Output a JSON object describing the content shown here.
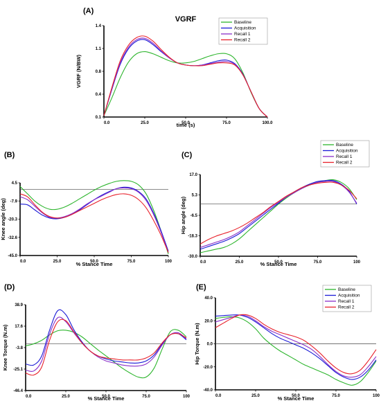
{
  "legend_labels": [
    "Baseline",
    "Acquisition",
    "Recall 1",
    "Recall 2"
  ],
  "series_colors": {
    "Baseline": "#2db52d",
    "Acquisition": "#1a1ad6",
    "Recall 1": "#8a2ec8",
    "Recall 2": "#e8202a"
  },
  "chart_data": [
    {
      "id": "vgrf",
      "panel_label": "(A)",
      "type": "line",
      "title": "VGRF",
      "xlabel": "time (s)",
      "ylabel": "VGRF (N/BW)",
      "xlim": [
        0,
        100
      ],
      "ylim": [
        0.1,
        1.4
      ],
      "xticks": [
        "0.0",
        "25.0",
        "50.0",
        "75.0",
        "100.0"
      ],
      "yticks": [
        "0.1",
        "0.4",
        "0.8",
        "1.1",
        "1.4"
      ],
      "x": [
        0,
        5,
        10,
        15,
        20,
        25,
        30,
        35,
        40,
        45,
        50,
        55,
        60,
        65,
        70,
        75,
        80,
        85,
        90,
        95,
        100
      ],
      "zero_line": null,
      "series": [
        {
          "name": "Baseline",
          "values": [
            0.12,
            0.38,
            0.66,
            0.88,
            1.0,
            1.03,
            1.0,
            0.95,
            0.9,
            0.87,
            0.87,
            0.89,
            0.93,
            0.97,
            1.0,
            1.0,
            0.93,
            0.73,
            0.45,
            0.22,
            0.1
          ]
        },
        {
          "name": "Acquisition",
          "values": [
            0.12,
            0.5,
            0.85,
            1.07,
            1.18,
            1.2,
            1.13,
            1.03,
            0.94,
            0.87,
            0.84,
            0.83,
            0.84,
            0.87,
            0.9,
            0.91,
            0.86,
            0.71,
            0.46,
            0.22,
            0.1
          ]
        },
        {
          "name": "Recall 1",
          "values": [
            0.12,
            0.51,
            0.87,
            1.09,
            1.2,
            1.22,
            1.15,
            1.04,
            0.94,
            0.87,
            0.84,
            0.83,
            0.84,
            0.86,
            0.88,
            0.89,
            0.85,
            0.7,
            0.46,
            0.22,
            0.1
          ]
        },
        {
          "name": "Recall 2",
          "values": [
            0.12,
            0.53,
            0.9,
            1.12,
            1.23,
            1.25,
            1.18,
            1.06,
            0.95,
            0.87,
            0.84,
            0.83,
            0.83,
            0.85,
            0.87,
            0.87,
            0.84,
            0.7,
            0.46,
            0.22,
            0.1
          ]
        }
      ]
    },
    {
      "id": "knee-angle",
      "panel_label": "(B)",
      "type": "line",
      "title": "",
      "xlabel": "% Stance Time",
      "ylabel": "Knee angle (deg)",
      "xlim": [
        0,
        100
      ],
      "ylim": [
        -45,
        4.5
      ],
      "xticks": [
        "0.0",
        "25.0",
        "50.0",
        "75.0",
        "100"
      ],
      "yticks": [
        "-45.0",
        "-32.6",
        "-20.3",
        "-7.9",
        "4.5"
      ],
      "x": [
        0,
        5,
        10,
        15,
        20,
        25,
        30,
        35,
        40,
        45,
        50,
        55,
        60,
        65,
        70,
        75,
        80,
        85,
        90,
        95,
        100
      ],
      "zero_line": 0,
      "series": [
        {
          "name": "Baseline",
          "values": [
            2.0,
            -3.0,
            -8.0,
            -11.5,
            -13.5,
            -13.5,
            -12.0,
            -9.5,
            -6.5,
            -3.5,
            -0.5,
            2.0,
            4.0,
            5.5,
            6.0,
            5.5,
            3.0,
            -3.0,
            -14.0,
            -28.0,
            -44.0
          ]
        },
        {
          "name": "Acquisition",
          "values": [
            -10.0,
            -10.5,
            -14.0,
            -17.5,
            -19.5,
            -20.0,
            -19.0,
            -17.0,
            -14.0,
            -10.5,
            -7.0,
            -4.0,
            -1.5,
            0.5,
            1.5,
            1.0,
            -1.5,
            -6.5,
            -16.0,
            -28.0,
            -42.0
          ]
        },
        {
          "name": "Recall 1",
          "values": [
            -5.0,
            -7.0,
            -11.5,
            -16.0,
            -19.0,
            -19.5,
            -18.5,
            -16.5,
            -13.5,
            -10.0,
            -7.0,
            -4.5,
            -2.0,
            0.5,
            1.0,
            0.5,
            -2.0,
            -7.5,
            -17.0,
            -29.0,
            -43.0
          ]
        },
        {
          "name": "Recall 2",
          "values": [
            -3.0,
            -5.0,
            -10.5,
            -15.5,
            -18.5,
            -19.5,
            -19.0,
            -17.0,
            -14.5,
            -12.0,
            -9.5,
            -7.0,
            -5.0,
            -3.5,
            -3.0,
            -4.0,
            -7.0,
            -12.5,
            -21.0,
            -31.0,
            -43.0
          ]
        }
      ]
    },
    {
      "id": "hip-angle",
      "panel_label": "(C)",
      "type": "line",
      "title": "",
      "xlabel": "% Stance Time",
      "ylabel": "Hip angle (deg)",
      "xlim": [
        0,
        100
      ],
      "ylim": [
        -30,
        17
      ],
      "xticks": [
        "0.0",
        "25.0",
        "50.0",
        "75.0",
        "100"
      ],
      "yticks": [
        "-30.0",
        "-18.3",
        "-6.5",
        "5.3",
        "17.0"
      ],
      "x": [
        0,
        5,
        10,
        15,
        20,
        25,
        30,
        35,
        40,
        45,
        50,
        55,
        60,
        65,
        70,
        75,
        80,
        85,
        90,
        95,
        100
      ],
      "zero_line": 0,
      "series": [
        {
          "name": "Baseline",
          "values": [
            -28.0,
            -27.0,
            -26.0,
            -25.0,
            -23.0,
            -20.0,
            -16.0,
            -12.0,
            -8.0,
            -4.0,
            0.0,
            3.5,
            6.5,
            9.0,
            11.0,
            12.5,
            13.5,
            14.0,
            12.5,
            9.0,
            2.5
          ]
        },
        {
          "name": "Acquisition",
          "values": [
            -26.0,
            -24.5,
            -23.0,
            -21.5,
            -19.5,
            -17.0,
            -13.5,
            -10.0,
            -6.5,
            -3.0,
            0.5,
            4.0,
            7.0,
            9.5,
            11.5,
            13.0,
            13.5,
            13.5,
            11.5,
            7.5,
            0.0
          ]
        },
        {
          "name": "Recall 1",
          "values": [
            -25.0,
            -23.5,
            -22.0,
            -20.5,
            -18.5,
            -16.0,
            -12.5,
            -9.0,
            -5.5,
            -2.0,
            1.0,
            4.0,
            6.5,
            9.0,
            11.0,
            12.5,
            13.0,
            13.0,
            11.0,
            7.0,
            0.5
          ]
        },
        {
          "name": "Recall 2",
          "values": [
            -23.0,
            -20.5,
            -18.5,
            -17.0,
            -15.5,
            -13.5,
            -11.0,
            -8.0,
            -5.0,
            -1.5,
            1.5,
            4.5,
            7.0,
            9.5,
            11.0,
            12.0,
            12.5,
            12.5,
            11.0,
            8.0,
            3.0
          ]
        }
      ]
    },
    {
      "id": "knee-torque",
      "panel_label": "(D)",
      "type": "line",
      "title": "",
      "xlabel": "% Stance Time",
      "ylabel": "Knee Torque (N.m)",
      "xlim": [
        0,
        100
      ],
      "ylim": [
        -46.4,
        38.9
      ],
      "xticks": [
        "0.0",
        "25.0",
        "50.0",
        "75.0",
        "100"
      ],
      "yticks": [
        "-46.4",
        "-25.1",
        "-3.8",
        "17.6",
        "38.9"
      ],
      "x": [
        0,
        5,
        10,
        15,
        20,
        25,
        30,
        35,
        40,
        45,
        50,
        55,
        60,
        65,
        70,
        75,
        80,
        85,
        90,
        95,
        100
      ],
      "zero_line": 0,
      "series": [
        {
          "name": "Baseline",
          "values": [
            -2.0,
            0.0,
            3.5,
            9.0,
            13.0,
            13.5,
            11.5,
            7.0,
            0.5,
            -6.0,
            -12.0,
            -18.0,
            -24.0,
            -29.0,
            -33.0,
            -33.0,
            -24.0,
            -5.0,
            12.0,
            13.5,
            7.0
          ]
        },
        {
          "name": "Acquisition",
          "values": [
            -20.0,
            -21.0,
            -12.0,
            14.0,
            33.0,
            29.0,
            14.0,
            2.0,
            -7.0,
            -12.0,
            -15.0,
            -17.0,
            -18.0,
            -19.0,
            -19.0,
            -17.0,
            -11.0,
            0.0,
            9.0,
            10.0,
            4.0
          ]
        },
        {
          "name": "Recall 1",
          "values": [
            -26.0,
            -27.0,
            -17.0,
            10.0,
            26.0,
            22.0,
            11.0,
            1.0,
            -7.0,
            -13.0,
            -17.0,
            -19.0,
            -21.0,
            -22.0,
            -22.0,
            -20.0,
            -13.0,
            -1.0,
            9.0,
            11.0,
            5.0
          ]
        },
        {
          "name": "Recall 2",
          "values": [
            -29.0,
            -31.0,
            -23.0,
            4.0,
            22.0,
            23.0,
            12.0,
            1.0,
            -7.0,
            -12.0,
            -14.0,
            -15.0,
            -16.0,
            -16.0,
            -16.0,
            -14.0,
            -9.0,
            1.0,
            9.0,
            10.0,
            6.0
          ]
        }
      ]
    },
    {
      "id": "hip-torque",
      "panel_label": "(E)",
      "type": "line",
      "title": "",
      "xlabel": "% Stance Time",
      "ylabel": "Hip Torque (N.m)",
      "xlim": [
        0,
        100
      ],
      "ylim": [
        -40,
        40
      ],
      "xticks": [
        "0.0",
        "25.0",
        "50.0",
        "75.0",
        "100"
      ],
      "yticks": [
        "-40.0",
        "-20.0",
        "0.0",
        "20.0",
        "40.0"
      ],
      "x": [
        0,
        5,
        10,
        15,
        20,
        25,
        30,
        35,
        40,
        45,
        50,
        55,
        60,
        65,
        70,
        75,
        80,
        85,
        90,
        95,
        100
      ],
      "zero_line": 0,
      "series": [
        {
          "name": "Baseline",
          "values": [
            22.0,
            23.0,
            23.5,
            22.5,
            19.0,
            13.0,
            5.0,
            -1.0,
            -6.0,
            -10.0,
            -14.0,
            -18.0,
            -21.0,
            -24.0,
            -27.0,
            -31.0,
            -34.0,
            -36.0,
            -33.0,
            -25.0,
            -15.0
          ]
        },
        {
          "name": "Acquisition",
          "values": [
            24.0,
            24.5,
            25.0,
            25.0,
            23.0,
            19.0,
            14.0,
            9.0,
            5.0,
            2.0,
            -1.0,
            -4.0,
            -8.0,
            -13.0,
            -19.0,
            -25.0,
            -29.0,
            -31.0,
            -29.0,
            -23.0,
            -14.0
          ]
        },
        {
          "name": "Recall 1",
          "values": [
            19.0,
            21.0,
            23.0,
            25.0,
            24.0,
            20.0,
            15.0,
            11.0,
            8.0,
            5.0,
            2.0,
            -1.0,
            -5.0,
            -11.0,
            -18.0,
            -24.0,
            -28.0,
            -29.0,
            -27.0,
            -20.0,
            -11.0
          ]
        },
        {
          "name": "Recall 2",
          "values": [
            14.0,
            18.0,
            22.0,
            25.0,
            25.0,
            22.0,
            17.0,
            13.0,
            10.0,
            8.0,
            6.0,
            3.0,
            -2.0,
            -8.0,
            -15.0,
            -21.0,
            -25.0,
            -26.0,
            -23.0,
            -15.0,
            -5.0
          ]
        }
      ]
    }
  ]
}
